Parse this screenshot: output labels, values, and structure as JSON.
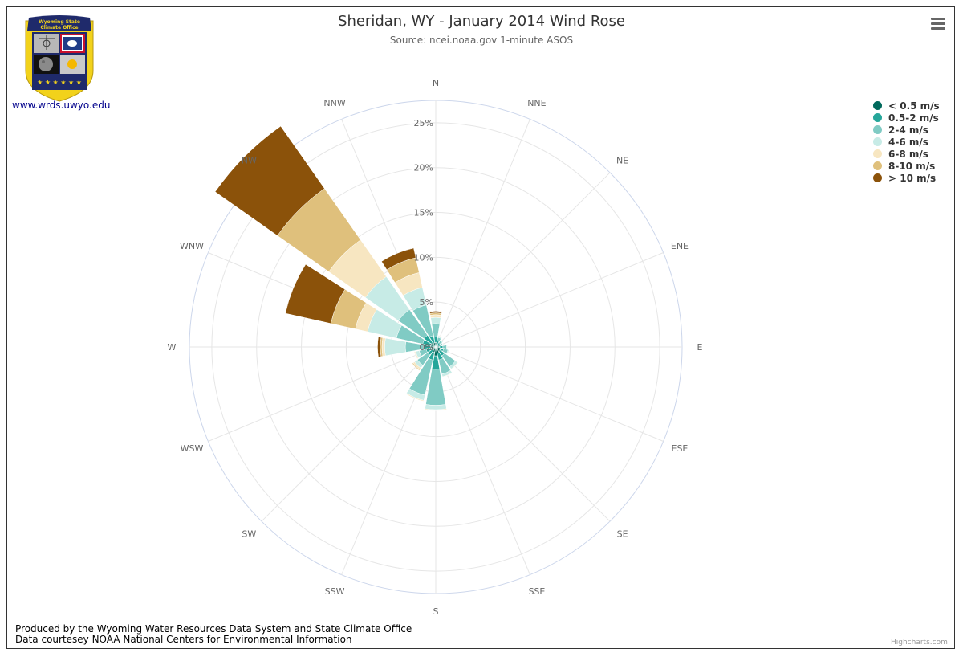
{
  "header": {
    "title": "Sheridan, WY - January 2014 Wind Rose",
    "subtitle": "Source: ncei.noaa.gov 1-minute ASOS"
  },
  "logo": {
    "lines": [
      "Wyoming State",
      "Climate Office"
    ],
    "link_text": "www.wrds.uwyo.edu",
    "colors": {
      "navy": "#1f2a6b",
      "gold": "#f2d21b"
    }
  },
  "menu": {
    "icon": "hamburger-menu-icon"
  },
  "footer": {
    "line1": "Produced by the Wyoming Water Resources Data System and State Climate Office",
    "line2": "Data courtesey NOAA National Centers for Environmental Information",
    "credits": "Highcharts.com"
  },
  "chart_data": {
    "type": "windrose",
    "title": "Sheridan, WY - January 2014 Wind Rose",
    "subtitle": "Source: ncei.noaa.gov 1-minute ASOS",
    "directions": [
      "N",
      "NNE",
      "NE",
      "ENE",
      "E",
      "ESE",
      "SE",
      "SSE",
      "S",
      "SSW",
      "SW",
      "WSW",
      "W",
      "WNW",
      "NW",
      "NNW"
    ],
    "radial_ticks": [
      "0%",
      "5%",
      "10%",
      "15%",
      "20%",
      "25%"
    ],
    "radial_max": 27.5,
    "stacking": "normal",
    "legend_position": "right-top",
    "series": [
      {
        "name": "< 0.5 m/s",
        "color": "#00695c",
        "values": [
          0.5,
          0.3,
          0.3,
          0.3,
          0.4,
          0.5,
          0.6,
          0.7,
          1.0,
          0.6,
          0.5,
          0.5,
          0.6,
          0.6,
          0.6,
          0.5
        ]
      },
      {
        "name": "0.5-2 m/s",
        "color": "#26a69a",
        "values": [
          0.6,
          0.4,
          0.3,
          0.3,
          0.4,
          0.4,
          0.6,
          0.8,
          1.5,
          0.9,
          0.6,
          0.6,
          0.8,
          0.9,
          1.0,
          0.8
        ]
      },
      {
        "name": "2-4 m/s",
        "color": "#80cbc4",
        "values": [
          1.5,
          0.4,
          0.3,
          0.2,
          0.4,
          0.5,
          1.5,
          1.6,
          4.0,
          4.0,
          1.4,
          0.8,
          2.0,
          3.0,
          3.5,
          3.5
        ]
      },
      {
        "name": "4-6 m/s",
        "color": "#c7ebe6",
        "values": [
          0.7,
          0.2,
          0.1,
          0.05,
          0.1,
          0.1,
          0.3,
          0.3,
          0.5,
          0.6,
          0.4,
          0.4,
          2.3,
          3.3,
          4.5,
          2.0
        ]
      },
      {
        "name": "6-8 m/s",
        "color": "#f7e6c1",
        "values": [
          0.3,
          0.05,
          0,
          0,
          0,
          0,
          0.05,
          0.05,
          0.1,
          0.1,
          0.2,
          0.1,
          0.3,
          1.4,
          5.0,
          1.7
        ]
      },
      {
        "name": "8-10 m/s",
        "color": "#dfc07c",
        "values": [
          0.2,
          0,
          0,
          0,
          0,
          0,
          0,
          0,
          0,
          0,
          0.1,
          0.05,
          0.2,
          2.8,
          7.0,
          1.7
        ]
      },
      {
        "name": "> 10 m/s",
        "color": "#8b520a",
        "values": [
          0.2,
          0,
          0,
          0,
          0,
          0,
          0,
          0,
          0,
          0,
          0,
          0,
          0.3,
          5.2,
          8.5,
          1.1
        ]
      }
    ]
  }
}
